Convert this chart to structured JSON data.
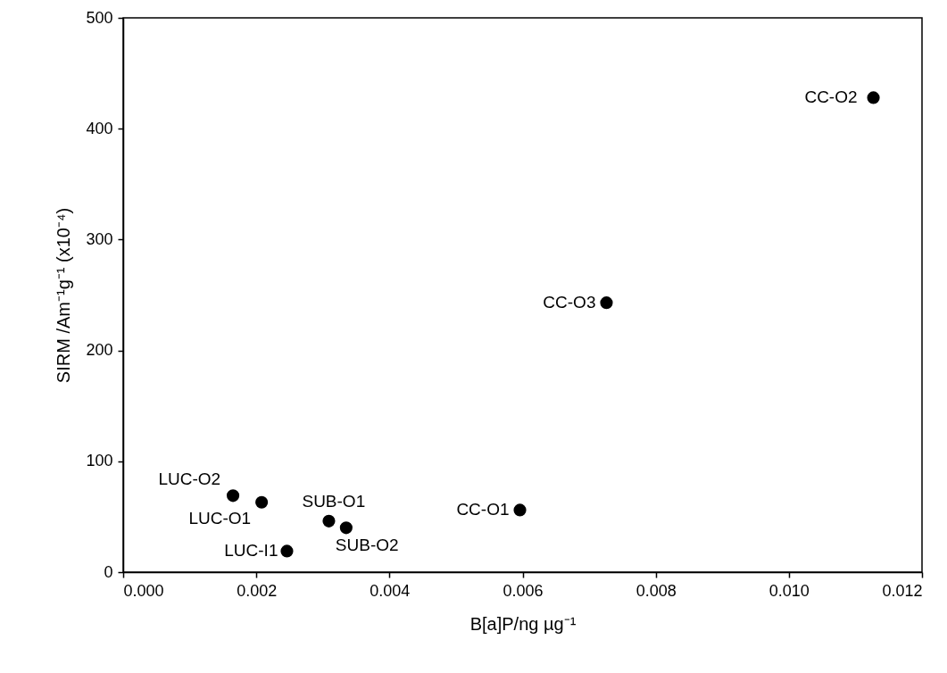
{
  "chart_data": {
    "type": "scatter",
    "xlabel": "B[a]P/ng µg⁻¹",
    "ylabel": "SIRM /Am⁻¹g⁻¹ (x10⁻⁴)",
    "x": [
      0.00165,
      0.00208,
      0.00246,
      0.00309,
      0.00335,
      0.00596,
      0.00726,
      0.01127
    ],
    "series": [
      {
        "color": "#000000",
        "values": [
          69,
          63,
          19,
          46,
          40,
          56,
          243,
          428
        ]
      }
    ],
    "marker": "circle",
    "grid": false,
    "xlim": [
      0,
      0.012
    ],
    "ylim": [
      0,
      500
    ],
    "xticks": [
      {
        "value": 0,
        "label": "0.000"
      },
      {
        "value": 0.002,
        "label": "0.002"
      },
      {
        "value": 0.004,
        "label": "0.004"
      },
      {
        "value": 0.006,
        "label": "0.006"
      },
      {
        "value": 0.008,
        "label": "0.008"
      },
      {
        "value": 0.01,
        "label": "0.010"
      },
      {
        "value": 0.012,
        "label": "0.012"
      }
    ],
    "yticks": [
      0,
      100,
      200,
      300,
      400,
      500
    ],
    "annotations": [
      {
        "text": "LUC-O2",
        "x": 0.00165,
        "y": 69
      },
      {
        "text": "LUC-O1",
        "x": 0.00208,
        "y": 63
      },
      {
        "text": "LUC-I1",
        "x": 0.00246,
        "y": 19
      },
      {
        "text": "SUB-O1",
        "x": 0.00309,
        "y": 46
      },
      {
        "text": "SUB-O2",
        "x": 0.00335,
        "y": 40
      },
      {
        "text": "CC-O1",
        "x": 0.00596,
        "y": 56
      },
      {
        "text": "CC-O3",
        "x": 0.00726,
        "y": 243
      },
      {
        "text": "CC-O2",
        "x": 0.01127,
        "y": 428
      }
    ]
  }
}
